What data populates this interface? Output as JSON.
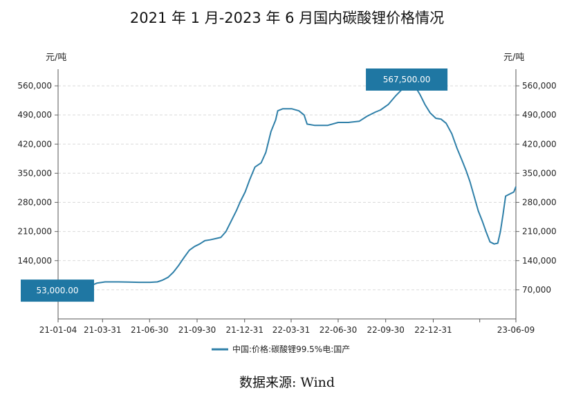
{
  "title": "2021 年 1 月-2023 年 6 月国内碳酸锂价格情况",
  "source": "数据来源:  Wind",
  "colors": {
    "line": "#2e7fa8",
    "callout": "#1f77a3"
  },
  "chart_data": {
    "type": "line",
    "title": "2021 年 1 月-2023 年 6 月国内碳酸锂价格情况",
    "ylabel_left": "元/吨",
    "ylabel_right": "元/吨",
    "ylim": [
      0,
      600000
    ],
    "yticks": [
      "70,000",
      "140,000",
      "210,000",
      "280,000",
      "350,000",
      "420,000",
      "490,000",
      "560,000"
    ],
    "ytick_values": [
      70000,
      140000,
      210000,
      280000,
      350000,
      420000,
      490000,
      560000
    ],
    "xlim": [
      "2021-01-04",
      "2023-06-09"
    ],
    "xticks": [
      "21-01-04",
      "21-03-31",
      "21-06-30",
      "21-09-30",
      "21-12-31",
      "22-03-31",
      "22-06-30",
      "22-09-30",
      "22-12-31",
      "23-06-09"
    ],
    "xtick_dates": [
      "2021-01-04",
      "2021-03-31",
      "2021-06-30",
      "2021-09-30",
      "2021-12-31",
      "2022-03-31",
      "2022-06-30",
      "2022-09-30",
      "2022-12-31",
      "2023-06-09"
    ],
    "unlabeled_xtick_dates": [
      "2023-03-31"
    ],
    "grid": true,
    "legend": "bottom-center",
    "annotations": [
      {
        "text": "53,000.00",
        "date": "2021-01-04",
        "value": 53000
      },
      {
        "text": "567,500.00",
        "date": "2022-11-15",
        "value": 567500
      }
    ],
    "series": [
      {
        "name": "中国:价格:碳酸锂99.5%电:国产",
        "points": [
          [
            "2021-01-04",
            53000
          ],
          [
            "2021-01-20",
            57000
          ],
          [
            "2021-02-05",
            68000
          ],
          [
            "2021-02-20",
            75000
          ],
          [
            "2021-03-05",
            78000
          ],
          [
            "2021-03-20",
            86000
          ],
          [
            "2021-04-05",
            89000
          ],
          [
            "2021-05-01",
            89000
          ],
          [
            "2021-05-20",
            88500
          ],
          [
            "2021-06-10",
            88000
          ],
          [
            "2021-07-01",
            88000
          ],
          [
            "2021-07-15",
            89000
          ],
          [
            "2021-07-25",
            93000
          ],
          [
            "2021-08-05",
            100000
          ],
          [
            "2021-08-15",
            112000
          ],
          [
            "2021-08-25",
            128000
          ],
          [
            "2021-09-05",
            148000
          ],
          [
            "2021-09-15",
            165000
          ],
          [
            "2021-09-25",
            174000
          ],
          [
            "2021-10-05",
            180000
          ],
          [
            "2021-10-15",
            188000
          ],
          [
            "2021-10-25",
            190000
          ],
          [
            "2021-11-05",
            193000
          ],
          [
            "2021-11-15",
            196000
          ],
          [
            "2021-11-25",
            210000
          ],
          [
            "2021-12-05",
            235000
          ],
          [
            "2021-12-15",
            260000
          ],
          [
            "2021-12-22",
            280000
          ],
          [
            "2022-01-01",
            305000
          ],
          [
            "2022-01-10",
            335000
          ],
          [
            "2022-01-20",
            365000
          ],
          [
            "2022-02-01",
            375000
          ],
          [
            "2022-02-10",
            400000
          ],
          [
            "2022-02-20",
            450000
          ],
          [
            "2022-03-01",
            478000
          ],
          [
            "2022-03-05",
            500000
          ],
          [
            "2022-03-15",
            505000
          ],
          [
            "2022-04-01",
            505000
          ],
          [
            "2022-04-15",
            500000
          ],
          [
            "2022-04-25",
            490000
          ],
          [
            "2022-05-01",
            468000
          ],
          [
            "2022-05-15",
            465000
          ],
          [
            "2022-06-10",
            465000
          ],
          [
            "2022-06-30",
            472000
          ],
          [
            "2022-07-20",
            472000
          ],
          [
            "2022-08-10",
            475000
          ],
          [
            "2022-08-25",
            487000
          ],
          [
            "2022-09-10",
            497000
          ],
          [
            "2022-09-20",
            502000
          ],
          [
            "2022-10-05",
            515000
          ],
          [
            "2022-10-20",
            537000
          ],
          [
            "2022-11-05",
            557000
          ],
          [
            "2022-11-15",
            567500
          ],
          [
            "2022-11-25",
            560000
          ],
          [
            "2022-12-05",
            540000
          ],
          [
            "2022-12-15",
            515000
          ],
          [
            "2022-12-25",
            495000
          ],
          [
            "2023-01-05",
            482000
          ],
          [
            "2023-01-15",
            480000
          ],
          [
            "2023-01-25",
            470000
          ],
          [
            "2023-02-05",
            445000
          ],
          [
            "2023-02-15",
            410000
          ],
          [
            "2023-02-25",
            380000
          ],
          [
            "2023-03-05",
            355000
          ],
          [
            "2023-03-12",
            330000
          ],
          [
            "2023-03-20",
            295000
          ],
          [
            "2023-03-28",
            260000
          ],
          [
            "2023-04-05",
            235000
          ],
          [
            "2023-04-12",
            210000
          ],
          [
            "2023-04-20",
            185000
          ],
          [
            "2023-04-28",
            180000
          ],
          [
            "2023-05-05",
            182000
          ],
          [
            "2023-05-10",
            210000
          ],
          [
            "2023-05-15",
            250000
          ],
          [
            "2023-05-20",
            295000
          ],
          [
            "2023-05-28",
            300000
          ],
          [
            "2023-06-05",
            305000
          ],
          [
            "2023-06-09",
            318000
          ]
        ]
      }
    ]
  }
}
